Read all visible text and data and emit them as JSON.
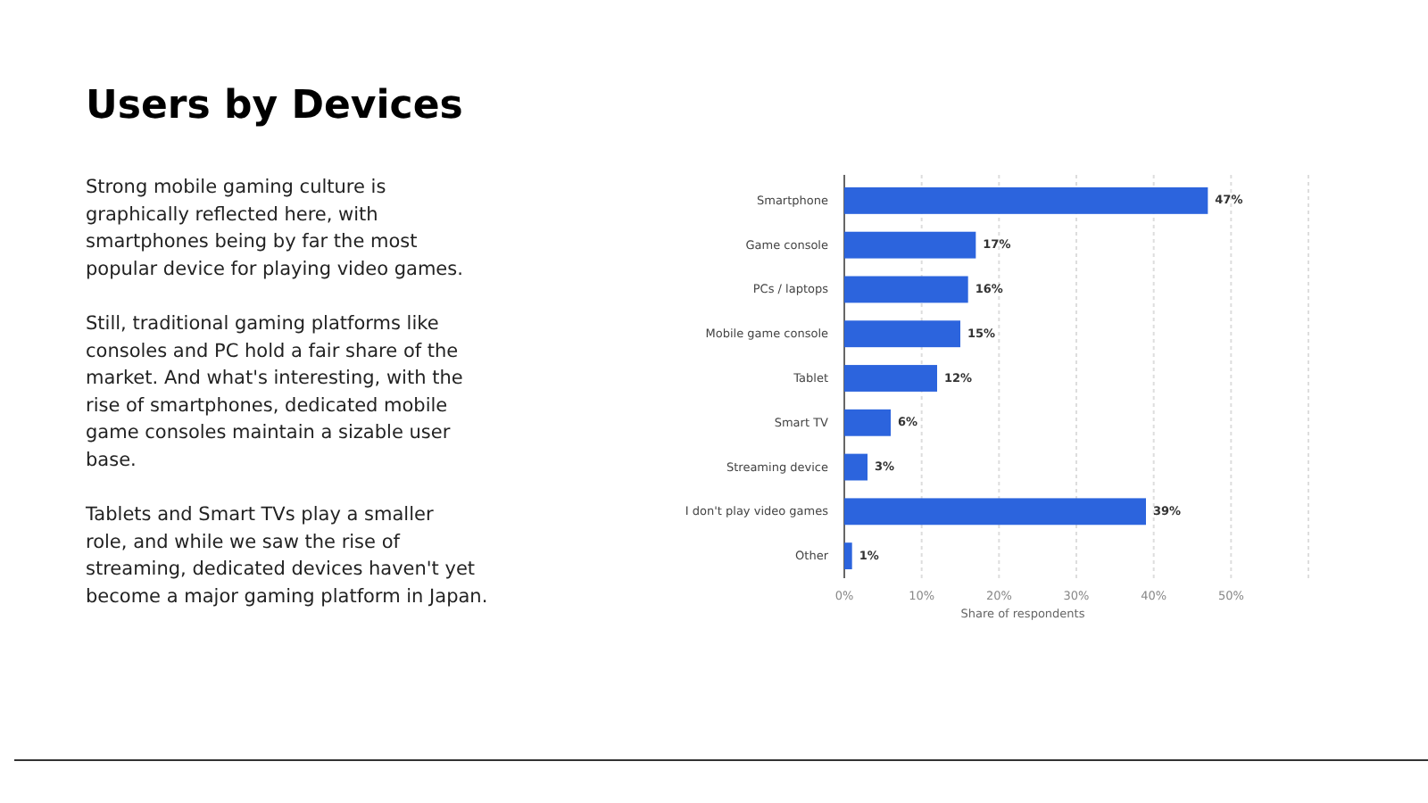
{
  "chart_data": {
    "type": "bar",
    "orientation": "horizontal",
    "title": "Users by Devices",
    "categories": [
      "Smartphone",
      "Game console",
      "PCs / laptops",
      "Mobile game console",
      "Tablet",
      "Smart TV",
      "Streaming device",
      "I don't play video games",
      "Other"
    ],
    "values": [
      47,
      17,
      16,
      15,
      12,
      6,
      3,
      39,
      1
    ],
    "value_labels": [
      "47%",
      "17%",
      "16%",
      "15%",
      "12%",
      "6%",
      "3%",
      "39%",
      "1%"
    ],
    "color": "#2c64dd",
    "xlabel": "Share of respondents",
    "xlim": [
      0,
      60
    ],
    "xticks": [
      {
        "value": 0,
        "label": "0%"
      },
      {
        "value": 10,
        "label": "10%"
      },
      {
        "value": 20,
        "label": "20%"
      },
      {
        "value": 30,
        "label": "30%"
      },
      {
        "value": 40,
        "label": "40%"
      },
      {
        "value": 50,
        "label": "50%"
      },
      {
        "value": 60,
        "label": null
      }
    ],
    "grid": "x",
    "annotations": [
      "Strong mobile gaming culture is graphically reflected here, with smartphones being by far the most popular device for playing video games.",
      "Still, traditional gaming platforms like consoles and PC hold a fair share of the market. And what's interesting, with the rise of smartphones, dedicated mobile game consoles maintain a sizable user base.",
      "Tablets and Smart TVs play a smaller role, and while we saw the rise of streaming, dedicated devices haven't yet become a major gaming platform in Japan."
    ]
  }
}
